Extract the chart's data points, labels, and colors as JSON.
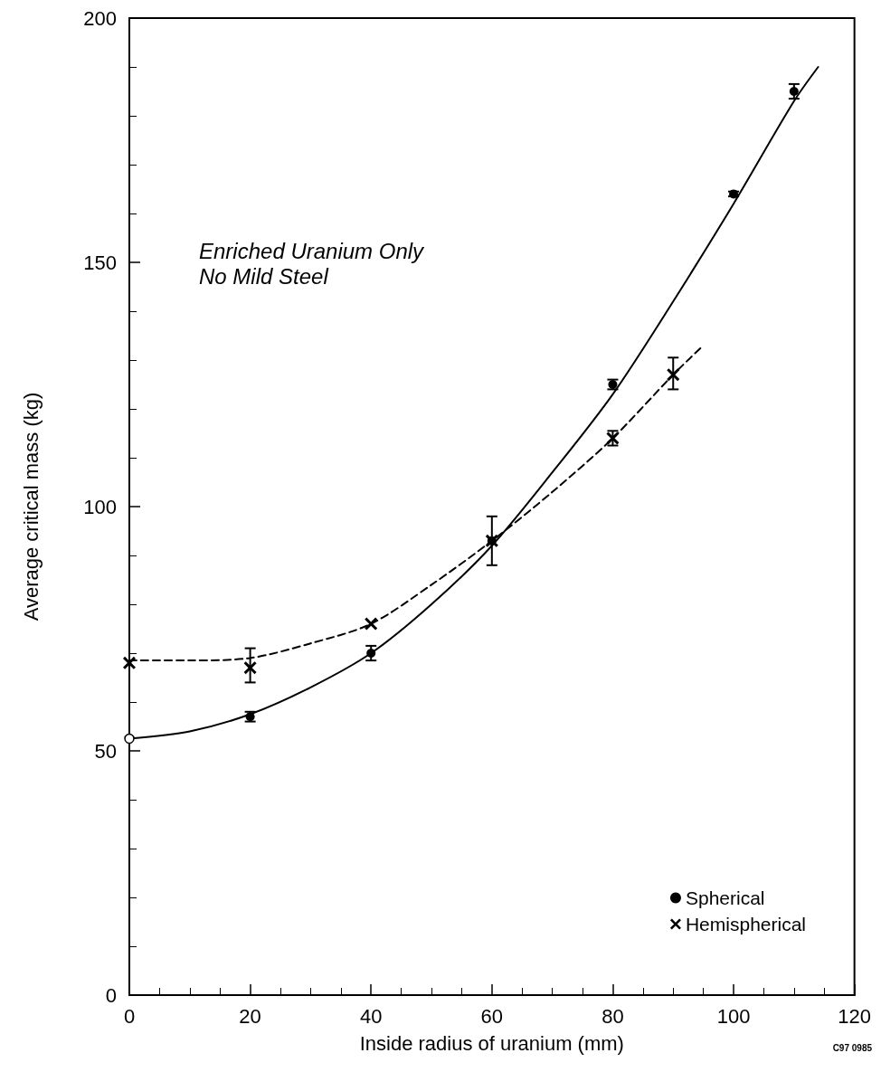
{
  "chart_data": {
    "type": "scatter",
    "xlabel": "Inside radius of uranium (mm)",
    "ylabel": "Average critical mass (kg)",
    "annotations": [
      "Enriched Uranium Only\nNo Mild Steel",
      "C97 0985"
    ],
    "xlim": [
      0,
      120
    ],
    "xticks": [
      0,
      20,
      40,
      60,
      80,
      100,
      120
    ],
    "ylim": [
      0,
      200
    ],
    "yticks": [
      0,
      50,
      100,
      150,
      200
    ],
    "grid": false,
    "legend": "bottom right",
    "series": [
      {
        "name": "Spherical",
        "marker": "circle",
        "color": "#000000",
        "x": [
          20,
          40,
          60,
          80,
          100,
          110
        ],
        "values": [
          57,
          70,
          93,
          125,
          164,
          185
        ],
        "errors": [
          1,
          1.5,
          [
            88,
            98
          ],
          1,
          0.5,
          1.5
        ]
      },
      {
        "name": "Hemispherical",
        "marker": "cross",
        "color": "#000000",
        "x": [
          0,
          20,
          40,
          60,
          80,
          90
        ],
        "values": [
          68,
          67,
          76,
          93,
          114,
          127
        ],
        "errors": [
          null,
          [
            64,
            71
          ],
          null,
          null,
          1.5,
          [
            124,
            130.5
          ]
        ]
      },
      {
        "marker": "circle",
        "color": "#ffffff",
        "x": [
          0
        ],
        "values": [
          52.5
        ]
      },
      {
        "type": "line",
        "line_style": "solid",
        "color": "#000000",
        "marker": "none",
        "x": [
          0,
          10,
          20,
          30,
          40,
          50,
          60,
          70,
          80,
          90,
          100,
          110,
          114
        ],
        "values": [
          52.5,
          54,
          57.5,
          63,
          70,
          80,
          92,
          107,
          123,
          142,
          162,
          183,
          190
        ]
      },
      {
        "type": "line",
        "line_style": "dashed",
        "color": "#000000",
        "marker": "none",
        "x": [
          0,
          10,
          20,
          30,
          40,
          50,
          60,
          70,
          80,
          90,
          95
        ],
        "values": [
          68.5,
          68.5,
          69,
          72,
          76,
          84,
          93,
          103,
          114,
          127,
          133
        ]
      }
    ]
  }
}
